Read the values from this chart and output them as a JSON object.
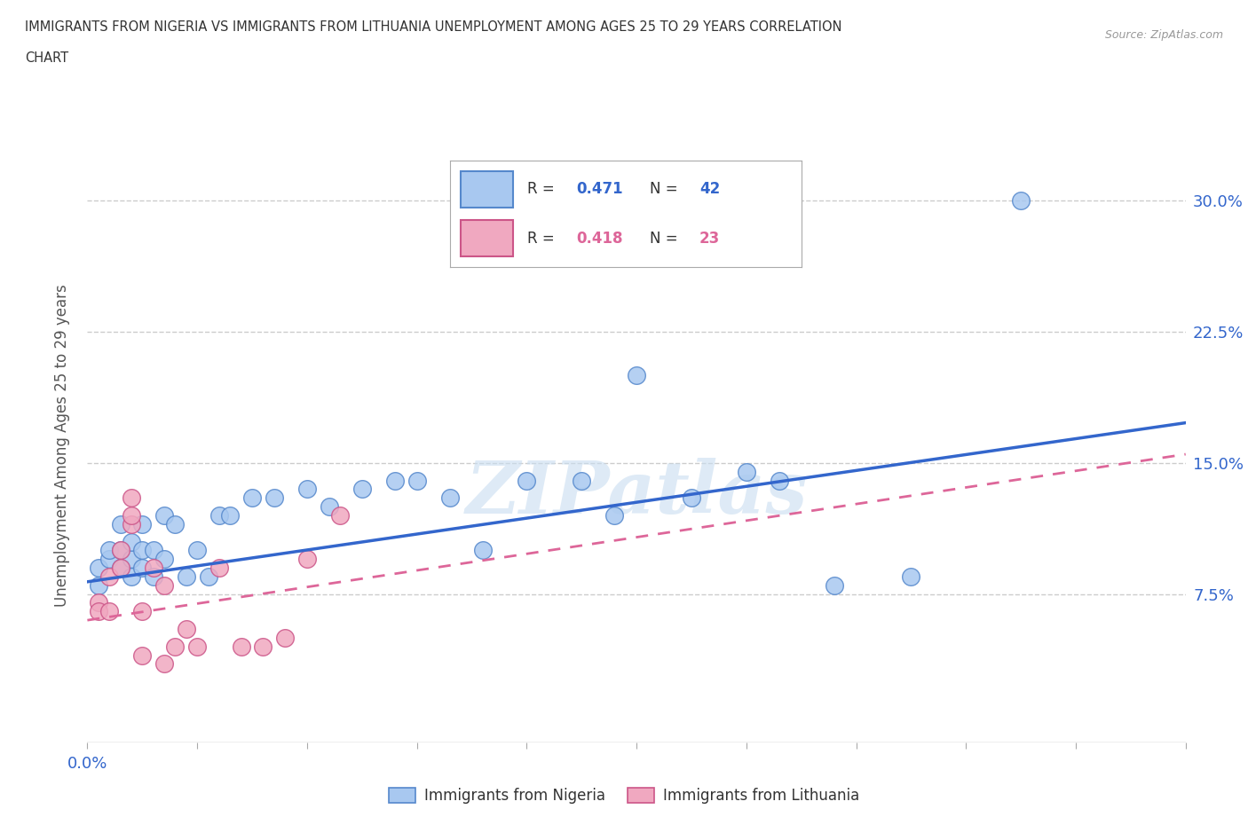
{
  "title_line1": "IMMIGRANTS FROM NIGERIA VS IMMIGRANTS FROM LITHUANIA UNEMPLOYMENT AMONG AGES 25 TO 29 YEARS CORRELATION",
  "title_line2": "CHART",
  "source_text": "Source: ZipAtlas.com",
  "ylabel": "Unemployment Among Ages 25 to 29 years",
  "xlim": [
    0.0,
    0.1
  ],
  "ylim": [
    -0.01,
    0.33
  ],
  "xticks": [
    0.0,
    0.01,
    0.02,
    0.03,
    0.04,
    0.05,
    0.06,
    0.07,
    0.08,
    0.09,
    0.1
  ],
  "xticklabels_show": {
    "0.0": "0.0%"
  },
  "ytick_vals": [
    0.075,
    0.15,
    0.225,
    0.3
  ],
  "yticklabels": [
    "7.5%",
    "15.0%",
    "22.5%",
    "30.0%"
  ],
  "nigeria_color": "#a8c8f0",
  "lithuania_color": "#f0a8c0",
  "nigeria_edge": "#5588cc",
  "lithuania_edge": "#cc5588",
  "nigeria_line_color": "#3366cc",
  "lithuania_line_color": "#dd6699",
  "nigeria_R": 0.471,
  "nigeria_N": 42,
  "lithuania_R": 0.418,
  "lithuania_N": 23,
  "nigeria_scatter_x": [
    0.001,
    0.001,
    0.002,
    0.002,
    0.003,
    0.003,
    0.003,
    0.004,
    0.004,
    0.004,
    0.005,
    0.005,
    0.005,
    0.006,
    0.006,
    0.007,
    0.007,
    0.008,
    0.009,
    0.01,
    0.011,
    0.012,
    0.013,
    0.015,
    0.017,
    0.02,
    0.022,
    0.025,
    0.028,
    0.03,
    0.033,
    0.036,
    0.04,
    0.045,
    0.048,
    0.05,
    0.055,
    0.06,
    0.063,
    0.068,
    0.075,
    0.085
  ],
  "nigeria_scatter_y": [
    0.08,
    0.09,
    0.095,
    0.1,
    0.09,
    0.1,
    0.115,
    0.085,
    0.095,
    0.105,
    0.09,
    0.1,
    0.115,
    0.085,
    0.1,
    0.095,
    0.12,
    0.115,
    0.085,
    0.1,
    0.085,
    0.12,
    0.12,
    0.13,
    0.13,
    0.135,
    0.125,
    0.135,
    0.14,
    0.14,
    0.13,
    0.1,
    0.14,
    0.14,
    0.12,
    0.2,
    0.13,
    0.145,
    0.14,
    0.08,
    0.085,
    0.3
  ],
  "lithuania_scatter_x": [
    0.001,
    0.001,
    0.002,
    0.002,
    0.003,
    0.003,
    0.004,
    0.004,
    0.004,
    0.005,
    0.005,
    0.006,
    0.007,
    0.007,
    0.008,
    0.009,
    0.01,
    0.012,
    0.014,
    0.016,
    0.018,
    0.02,
    0.023
  ],
  "lithuania_scatter_y": [
    0.07,
    0.065,
    0.085,
    0.065,
    0.09,
    0.1,
    0.115,
    0.12,
    0.13,
    0.065,
    0.04,
    0.09,
    0.08,
    0.035,
    0.045,
    0.055,
    0.045,
    0.09,
    0.045,
    0.045,
    0.05,
    0.095,
    0.12
  ],
  "nigeria_trend_x0": 0.0,
  "nigeria_trend_x1": 0.1,
  "nigeria_trend_y0": 0.082,
  "nigeria_trend_y1": 0.173,
  "lithuania_trend_x0": 0.0,
  "lithuania_trend_x1": 0.1,
  "lithuania_trend_y0": 0.06,
  "lithuania_trend_y1": 0.155,
  "watermark": "ZIPatlas",
  "grid_color": "#cccccc",
  "background_color": "#ffffff"
}
